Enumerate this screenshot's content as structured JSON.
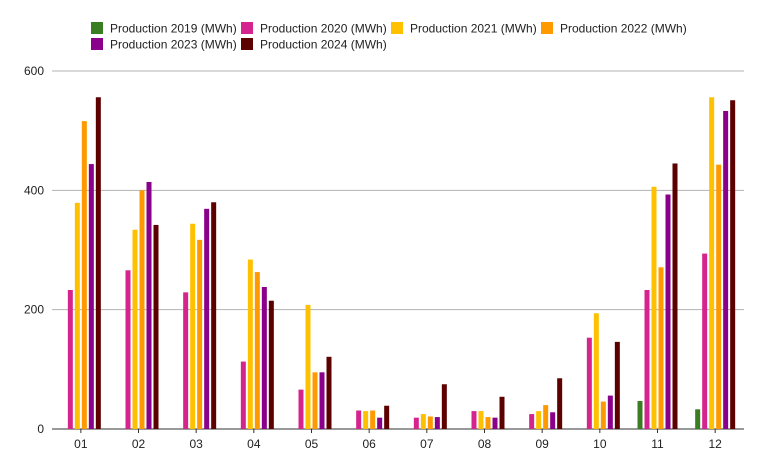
{
  "chart_data": {
    "type": "bar",
    "title": "",
    "xlabel": "",
    "ylabel": "",
    "categories": [
      "01",
      "02",
      "03",
      "04",
      "05",
      "06",
      "07",
      "08",
      "09",
      "10",
      "11",
      "12"
    ],
    "ylim": [
      0,
      600
    ],
    "yticks": [
      0,
      200,
      400,
      600
    ],
    "grid": true,
    "legend_position": "top",
    "series": [
      {
        "name": "Production 2019 (MWh)",
        "color": "#3a7d22",
        "values": [
          null,
          null,
          null,
          null,
          null,
          null,
          null,
          null,
          null,
          null,
          47,
          33
        ]
      },
      {
        "name": "Production 2020 (MWh)",
        "color": "#d6248e",
        "values": [
          233,
          266,
          229,
          113,
          66,
          31,
          19,
          30,
          25,
          153,
          233,
          294
        ]
      },
      {
        "name": "Production 2021 (MWh)",
        "color": "#ffc000",
        "values": [
          379,
          334,
          344,
          284,
          208,
          30,
          25,
          30,
          30,
          194,
          406,
          556
        ]
      },
      {
        "name": "Production 2022 (MWh)",
        "color": "#ff9900",
        "values": [
          516,
          400,
          317,
          263,
          95,
          31,
          21,
          20,
          40,
          46,
          271,
          443
        ]
      },
      {
        "name": "Production 2023 (MWh)",
        "color": "#8b008b",
        "values": [
          444,
          414,
          369,
          238,
          95,
          19,
          20,
          19,
          28,
          56,
          393,
          533
        ]
      },
      {
        "name": "Production 2024 (MWh)",
        "color": "#5c0000",
        "values": [
          556,
          342,
          380,
          215,
          121,
          39,
          75,
          54,
          85,
          146,
          445,
          551
        ]
      }
    ]
  }
}
